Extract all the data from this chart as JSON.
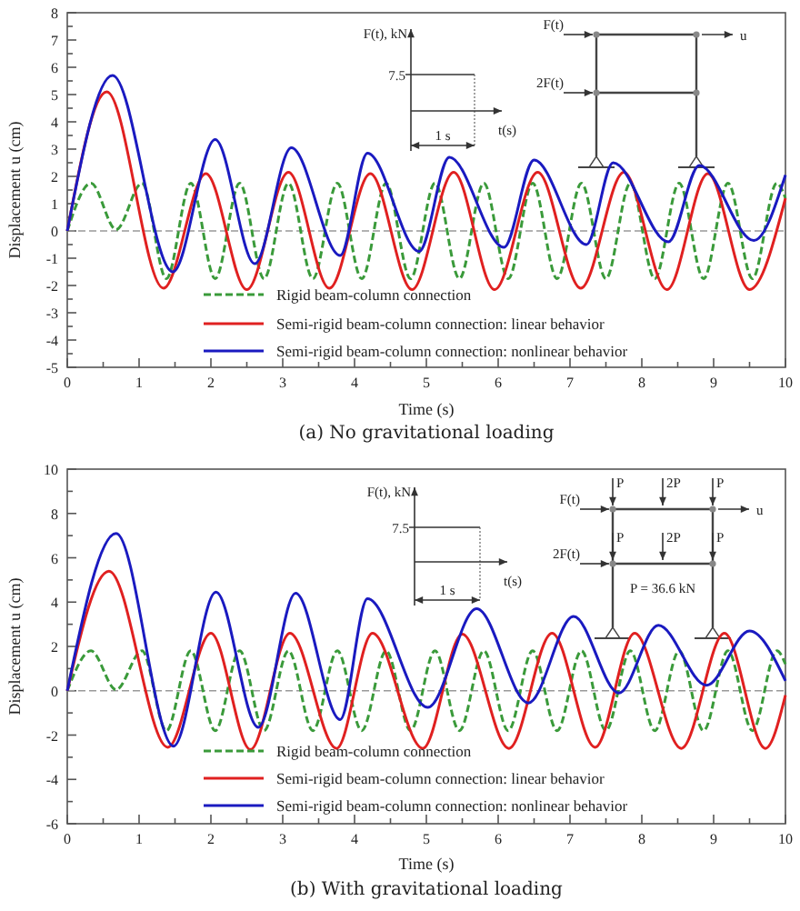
{
  "chart_data": [
    {
      "type": "line",
      "title": "(a) No gravitational loading",
      "xlabel": "Time (s)",
      "ylabel": "Displacement u (cm)",
      "legend": "bottom",
      "xlim": [
        0,
        10
      ],
      "xticks": [
        0,
        {
          "value": 0.5,
          "label": null
        },
        1,
        {
          "value": 1.5,
          "label": null
        },
        2,
        {
          "value": 2.5,
          "label": null
        },
        3,
        {
          "value": 3.5,
          "label": null
        },
        4,
        {
          "value": 4.5,
          "label": null
        },
        5,
        {
          "value": 5.5,
          "label": null
        },
        6,
        {
          "value": 6.5,
          "label": null
        },
        7,
        {
          "value": 7.5,
          "label": null
        },
        8,
        {
          "value": 8.5,
          "label": null
        },
        9,
        {
          "value": 9.5,
          "label": null
        },
        10
      ],
      "ylim": [
        -5,
        8
      ],
      "yticks": [
        -5,
        {
          "value": -4.5,
          "label": null
        },
        -4,
        {
          "value": -3.5,
          "label": null
        },
        -3,
        {
          "value": -2.5,
          "label": null
        },
        -2,
        {
          "value": -1.5,
          "label": null
        },
        -1,
        {
          "value": -0.5,
          "label": null
        },
        0,
        {
          "value": 0.5,
          "label": null
        },
        1,
        {
          "value": 1.5,
          "label": null
        },
        2,
        {
          "value": 2.5,
          "label": null
        },
        3,
        {
          "value": 3.5,
          "label": null
        },
        4,
        {
          "value": 4.5,
          "label": null
        },
        5,
        {
          "value": 5.5,
          "label": null
        },
        6,
        {
          "value": 6.5,
          "label": null
        },
        7,
        {
          "value": 7.5,
          "label": null
        },
        8
      ],
      "ref_lines": [
        {
          "axis": "y",
          "value": 0,
          "color": "#999999",
          "line_style": "dashed"
        }
      ],
      "annotations": [
        "F(t), kN",
        "7.5",
        "t(s)",
        "1 s",
        "F(t)",
        "u",
        "2F(t)"
      ],
      "series": [
        {
          "name": "Rigid beam-column connection",
          "color": "#3a9a3a",
          "line_style": "dashed",
          "x": [
            0,
            0.33,
            0.68,
            1.04,
            1.38,
            1.72,
            2.06,
            2.4,
            2.74,
            3.08,
            3.42,
            3.76,
            4.1,
            4.44,
            4.78,
            5.12,
            5.46,
            5.8,
            6.14,
            6.48,
            6.82,
            7.16,
            7.5,
            7.84,
            8.18,
            8.52,
            8.86,
            9.2,
            9.54,
            9.88,
            10
          ],
          "values": [
            0,
            1.75,
            0.05,
            1.75,
            -1.75,
            1.75,
            -1.75,
            1.75,
            -1.75,
            1.75,
            -1.75,
            1.75,
            -1.75,
            1.75,
            -1.75,
            1.75,
            -1.75,
            1.75,
            -1.75,
            1.75,
            -1.75,
            1.75,
            -1.75,
            1.75,
            -1.75,
            1.75,
            -1.75,
            1.75,
            -1.75,
            1.75,
            1.2
          ]
        },
        {
          "name": "Semi-rigid beam-column connection: linear behavior",
          "color": "#e02020",
          "x": [
            0,
            0.55,
            1.34,
            1.93,
            2.5,
            3.08,
            3.65,
            4.22,
            4.8,
            5.38,
            5.95,
            6.55,
            7.15,
            7.75,
            8.35,
            8.92,
            9.5,
            10
          ],
          "values": [
            0,
            5.1,
            -2.1,
            2.1,
            -2.15,
            2.15,
            -2.1,
            2.1,
            -2.15,
            2.15,
            -2.15,
            2.15,
            -2.1,
            2.15,
            -2.15,
            2.1,
            -2.15,
            1.2
          ]
        },
        {
          "name": "Semi-rigid beam-column connection: nonlinear behavior",
          "color": "#1a1ac0",
          "x": [
            0,
            0.63,
            1.47,
            2.06,
            2.61,
            3.12,
            3.8,
            4.18,
            4.9,
            5.32,
            6.08,
            6.5,
            7.23,
            7.6,
            8.37,
            8.8,
            9.56,
            10
          ],
          "values": [
            0,
            5.7,
            -1.5,
            3.35,
            -1.2,
            3.05,
            -0.9,
            2.85,
            -0.75,
            2.7,
            -0.6,
            2.6,
            -0.5,
            2.5,
            -0.4,
            2.4,
            -0.35,
            2.05
          ]
        }
      ]
    },
    {
      "type": "line",
      "title": "(b) With gravitational loading",
      "xlabel": "Time (s)",
      "ylabel": "Displacement u (cm)",
      "legend": "bottom",
      "xlim": [
        0,
        10
      ],
      "xticks": [
        0,
        {
          "value": 0.5,
          "label": null
        },
        1,
        {
          "value": 1.5,
          "label": null
        },
        2,
        {
          "value": 2.5,
          "label": null
        },
        3,
        {
          "value": 3.5,
          "label": null
        },
        4,
        {
          "value": 4.5,
          "label": null
        },
        5,
        {
          "value": 5.5,
          "label": null
        },
        6,
        {
          "value": 6.5,
          "label": null
        },
        7,
        {
          "value": 7.5,
          "label": null
        },
        8,
        {
          "value": 8.5,
          "label": null
        },
        9,
        {
          "value": 9.5,
          "label": null
        },
        10
      ],
      "ylim": [
        -6,
        10
      ],
      "yticks": [
        -6,
        {
          "value": -5,
          "label": null
        },
        -4,
        {
          "value": -3,
          "label": null
        },
        -2,
        {
          "value": -1,
          "label": null
        },
        0,
        {
          "value": 1,
          "label": null
        },
        2,
        {
          "value": 3,
          "label": null
        },
        4,
        {
          "value": 5,
          "label": null
        },
        6,
        {
          "value": 7,
          "label": null
        },
        8,
        {
          "value": 9,
          "label": null
        },
        10
      ],
      "ref_lines": [
        {
          "axis": "y",
          "value": 0,
          "color": "#999999",
          "line_style": "dashed"
        }
      ],
      "annotations": [
        "F(t), kN",
        "7.5",
        "t(s)",
        "1 s",
        "F(t)",
        "u",
        "2F(t)",
        "P",
        "2P",
        "P",
        "P",
        "2P",
        "P",
        "P = 36.6 kN"
      ],
      "series": [
        {
          "name": "Rigid beam-column connection",
          "color": "#3a9a3a",
          "line_style": "dashed",
          "x": [
            0,
            0.33,
            0.68,
            1.04,
            1.38,
            1.72,
            2.06,
            2.4,
            2.74,
            3.08,
            3.42,
            3.76,
            4.1,
            4.44,
            4.78,
            5.12,
            5.46,
            5.8,
            6.14,
            6.48,
            6.82,
            7.16,
            7.5,
            7.84,
            8.18,
            8.52,
            8.86,
            9.2,
            9.54,
            9.88,
            10
          ],
          "values": [
            0,
            1.8,
            0.05,
            1.8,
            -1.8,
            1.8,
            -1.8,
            1.8,
            -1.8,
            1.8,
            -1.8,
            1.8,
            -1.8,
            1.8,
            -1.8,
            1.8,
            -1.8,
            1.8,
            -1.8,
            1.8,
            -1.8,
            1.8,
            -1.8,
            1.8,
            -1.8,
            1.8,
            -1.8,
            1.8,
            -1.8,
            1.8,
            1.2
          ]
        },
        {
          "name": "Semi-rigid beam-column connection: linear behavior",
          "color": "#e02020",
          "x": [
            0,
            0.58,
            1.4,
            2.0,
            2.55,
            3.1,
            3.75,
            4.25,
            4.95,
            5.5,
            6.15,
            6.75,
            7.35,
            7.9,
            8.55,
            9.15,
            9.72,
            10
          ],
          "values": [
            0,
            5.4,
            -2.55,
            2.6,
            -2.65,
            2.6,
            -2.6,
            2.6,
            -2.6,
            2.55,
            -2.6,
            2.6,
            -2.55,
            2.6,
            -2.6,
            2.6,
            -2.6,
            -0.2
          ]
        },
        {
          "name": "Semi-rigid beam-column connection: nonlinear behavior",
          "color": "#1a1ac0",
          "x": [
            0,
            0.68,
            1.48,
            2.07,
            2.66,
            3.18,
            3.8,
            4.18,
            5.02,
            5.7,
            6.42,
            7.05,
            7.68,
            8.23,
            8.9,
            9.5,
            10
          ],
          "values": [
            0,
            7.1,
            -2.5,
            4.45,
            -1.65,
            4.4,
            -1.3,
            4.15,
            -0.75,
            3.7,
            -0.55,
            3.35,
            -0.1,
            2.95,
            0.25,
            2.7,
            0.45
          ]
        }
      ]
    }
  ]
}
